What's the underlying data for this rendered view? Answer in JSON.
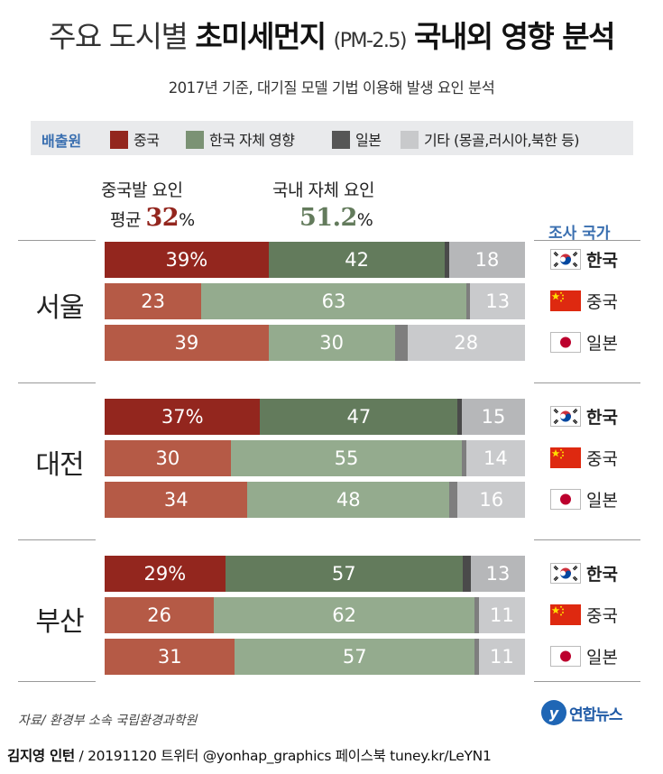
{
  "title": {
    "part1": "주요 도시별",
    "part2": "초미세먼지",
    "part3": "(PM-2.5)",
    "part4": "국내외 영향 분석"
  },
  "subtitle": "2017년 기준, 대기질 모델 기법 이용해 발생 요인 분석",
  "legend": {
    "title": "배출원",
    "items": [
      {
        "label": "중국",
        "color": "#93261e"
      },
      {
        "label": "한국 자체 영향",
        "color": "#7b9274"
      },
      {
        "label": "일본",
        "color": "#565656"
      },
      {
        "label": "기타 (몽골,러시아,북한 등)",
        "color": "#c8c9cb"
      }
    ]
  },
  "averages": {
    "china": {
      "label_top": "중국발 요인",
      "label_prefix": "평균",
      "value": "32",
      "unit": "%",
      "color": "#93261e"
    },
    "domestic": {
      "label_top": "국내 자체 요인",
      "value": "51.2",
      "unit": "%",
      "color": "#637b5c"
    }
  },
  "survey_header": "조사 국가",
  "colors": {
    "china_strong": "#93261e",
    "domestic_strong": "#637b5c",
    "japan_strong": "#4a4a4a",
    "other_strong": "#b6b7b9",
    "china_light": "#b55a46",
    "domestic_light": "#94ab8e",
    "japan_light": "#7e7e7e",
    "other_light": "#c9cacc"
  },
  "chart_data": {
    "type": "bar",
    "stacked": true,
    "orientation": "horizontal",
    "segments": [
      "중국",
      "한국 자체 영향",
      "일본",
      "기타 (몽골,러시아,북한 등)"
    ],
    "groups": [
      {
        "city": "서울",
        "rows": [
          {
            "country": "한국",
            "home": true,
            "values": [
              39,
              42,
              1,
              18
            ],
            "labels": [
              "39%",
              "42",
              "",
              "18"
            ]
          },
          {
            "country": "중국",
            "home": false,
            "values": [
              23,
              63,
              1,
              13
            ],
            "labels": [
              "23",
              "63",
              "",
              "13"
            ]
          },
          {
            "country": "일본",
            "home": false,
            "values": [
              39,
              30,
              3,
              28
            ],
            "labels": [
              "39",
              "30",
              "",
              "28"
            ]
          }
        ]
      },
      {
        "city": "대전",
        "rows": [
          {
            "country": "한국",
            "home": true,
            "values": [
              37,
              47,
              1,
              15
            ],
            "labels": [
              "37%",
              "47",
              "",
              "15"
            ]
          },
          {
            "country": "중국",
            "home": false,
            "values": [
              30,
              55,
              1,
              14
            ],
            "labels": [
              "30",
              "55",
              "",
              "14"
            ]
          },
          {
            "country": "일본",
            "home": false,
            "values": [
              34,
              48,
              2,
              16
            ],
            "labels": [
              "34",
              "48",
              "",
              "16"
            ]
          }
        ]
      },
      {
        "city": "부산",
        "rows": [
          {
            "country": "한국",
            "home": true,
            "values": [
              29,
              57,
              2,
              13
            ],
            "labels": [
              "29%",
              "57",
              "",
              "13"
            ]
          },
          {
            "country": "중국",
            "home": false,
            "values": [
              26,
              62,
              1,
              11
            ],
            "labels": [
              "26",
              "62",
              "",
              "11"
            ]
          },
          {
            "country": "일본",
            "home": false,
            "values": [
              31,
              57,
              1,
              11
            ],
            "labels": [
              "31",
              "57",
              "",
              "11"
            ]
          }
        ]
      }
    ]
  },
  "source": "자료/ 환경부 소속 국립환경과학원",
  "logo": {
    "mark": "y",
    "text": "연합뉴스"
  },
  "footer": {
    "author": "김지영 인턴",
    "rest": "/ 20191120 트위터 @yonhap_graphics  페이스북 tuney.kr/LeYN1"
  }
}
